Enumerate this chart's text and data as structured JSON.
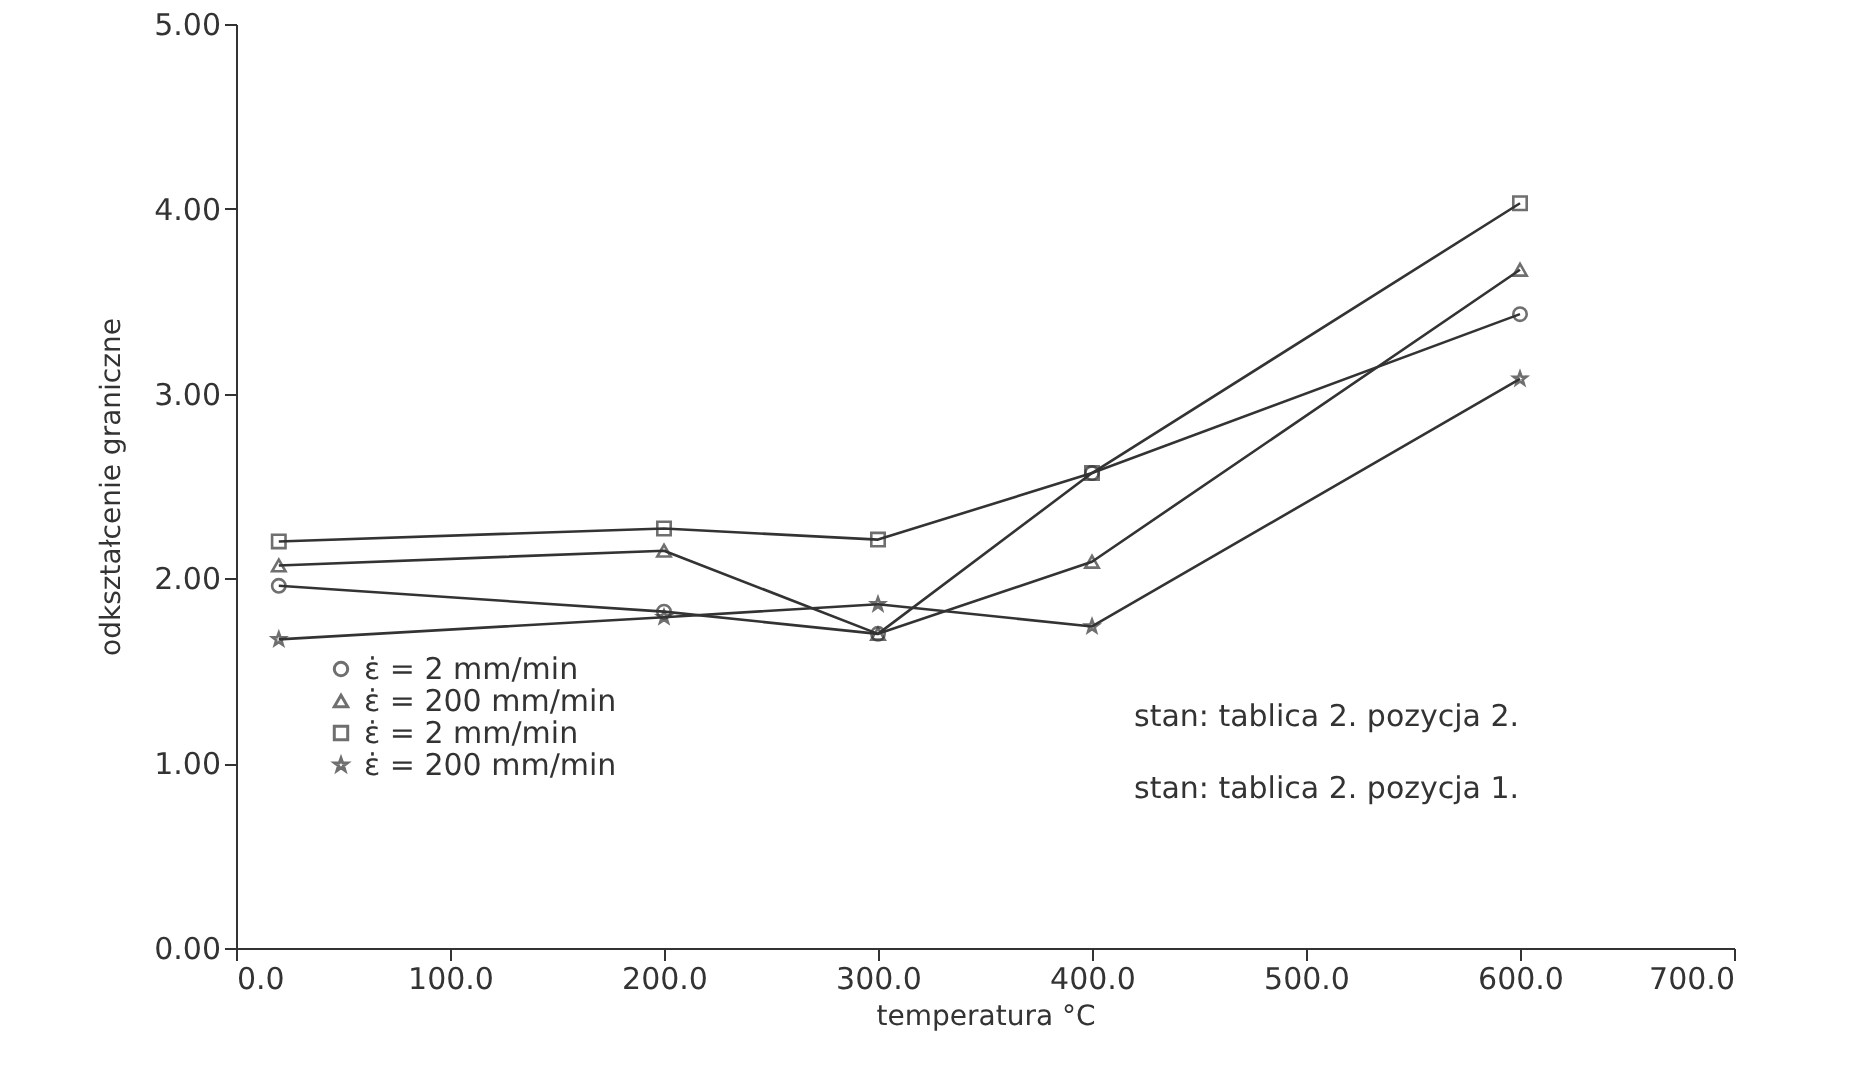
{
  "chart_data": {
    "type": "line",
    "xlabel": "temperatura  °C",
    "ylabel": "odkształcenie graniczne",
    "x": [
      20,
      200,
      300,
      400,
      600
    ],
    "series": [
      {
        "name": "ε̇  =  2   mm/min",
        "color": "#333333",
        "marker": "circle",
        "values": [
          1.96,
          1.82,
          1.7,
          2.57,
          3.43
        ]
      },
      {
        "name": "ε̇  =  200  mm/min",
        "color": "#333333",
        "marker": "triangle",
        "values": [
          2.07,
          2.15,
          1.7,
          2.09,
          3.67
        ]
      },
      {
        "name": "ε̇  =  2   mm/min",
        "color": "#333333",
        "marker": "square",
        "values": [
          2.2,
          2.27,
          2.21,
          2.57,
          4.03
        ]
      },
      {
        "name": "ε̇  =  200  mm/min",
        "color": "#333333",
        "marker": "star",
        "values": [
          1.67,
          1.79,
          1.86,
          1.74,
          3.08
        ]
      }
    ],
    "xlim": [
      0,
      700
    ],
    "xticks": [
      {
        "value": 0,
        "label": "0.0"
      },
      {
        "value": 100,
        "label": "100.0"
      },
      {
        "value": 200,
        "label": "200.0"
      },
      {
        "value": 300,
        "label": "300.0"
      },
      {
        "value": 400,
        "label": "400.0"
      },
      {
        "value": 500,
        "label": "500.0"
      },
      {
        "value": 600,
        "label": "600.0"
      },
      {
        "value": 700,
        "label": "700.0"
      }
    ],
    "ylim": [
      0,
      5
    ],
    "yticks": [
      {
        "value": 0,
        "label": "0.00"
      },
      {
        "value": 1,
        "label": "1.00"
      },
      {
        "value": 2,
        "label": "2.00"
      },
      {
        "value": 3,
        "label": "3.00"
      },
      {
        "value": 4,
        "label": "4.00"
      },
      {
        "value": 5,
        "label": "5.00"
      }
    ],
    "legend": "bottom left",
    "grid": false,
    "annotations": [
      "stan: tablica 2. pozycja 2.",
      "stan: tablica 2. pozycja 1."
    ]
  }
}
